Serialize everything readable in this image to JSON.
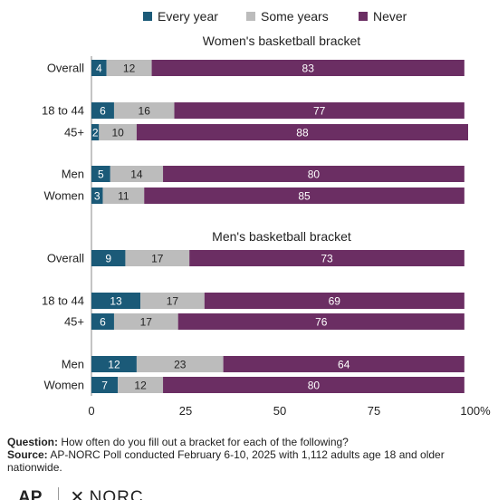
{
  "header": {
    "clipped_subtitle": ""
  },
  "colors": {
    "every_year": "#1b5a78",
    "some_years": "#bcbcbc",
    "never": "#6b2e63",
    "axis": "#888888"
  },
  "legend": [
    {
      "name": "Every year",
      "color": "#1b5a78"
    },
    {
      "name": "Some years",
      "color": "#bcbcbc"
    },
    {
      "name": "Never",
      "color": "#6b2e63"
    }
  ],
  "chart_data": {
    "type": "bar",
    "orientation": "horizontal",
    "stacked": true,
    "xlim": [
      0,
      100
    ],
    "xticks": [
      "0",
      "25",
      "50",
      "75",
      "100%"
    ],
    "series_names": [
      "Every year",
      "Some years",
      "Never"
    ],
    "panels": [
      {
        "title": "Women's basketball bracket",
        "groups": [
          [
            {
              "label": "Overall",
              "values": [
                4,
                12,
                83
              ]
            }
          ],
          [
            {
              "label": "18 to 44",
              "values": [
                6,
                16,
                77
              ]
            },
            {
              "label": "45+",
              "values": [
                2,
                10,
                88
              ]
            }
          ],
          [
            {
              "label": "Men",
              "values": [
                5,
                14,
                80
              ]
            },
            {
              "label": "Women",
              "values": [
                3,
                11,
                85
              ]
            }
          ]
        ]
      },
      {
        "title": "Men's basketball bracket",
        "groups": [
          [
            {
              "label": "Overall",
              "values": [
                9,
                17,
                73
              ]
            }
          ],
          [
            {
              "label": "18 to 44",
              "values": [
                13,
                17,
                69
              ]
            },
            {
              "label": "45+",
              "values": [
                6,
                17,
                76
              ]
            }
          ],
          [
            {
              "label": "Men",
              "values": [
                12,
                23,
                64
              ]
            },
            {
              "label": "Women",
              "values": [
                7,
                12,
                80
              ]
            }
          ]
        ]
      }
    ]
  },
  "footer": {
    "question_label": "Question:",
    "question_text": " How often do you fill out a bracket for each of the following?",
    "source_label": "Source:",
    "source_text": " AP-NORC Poll conducted February 6-10, 2025 with 1,112 adults age 18 and older nationwide."
  },
  "logos": {
    "ap": "AP",
    "norc": "NORC"
  }
}
